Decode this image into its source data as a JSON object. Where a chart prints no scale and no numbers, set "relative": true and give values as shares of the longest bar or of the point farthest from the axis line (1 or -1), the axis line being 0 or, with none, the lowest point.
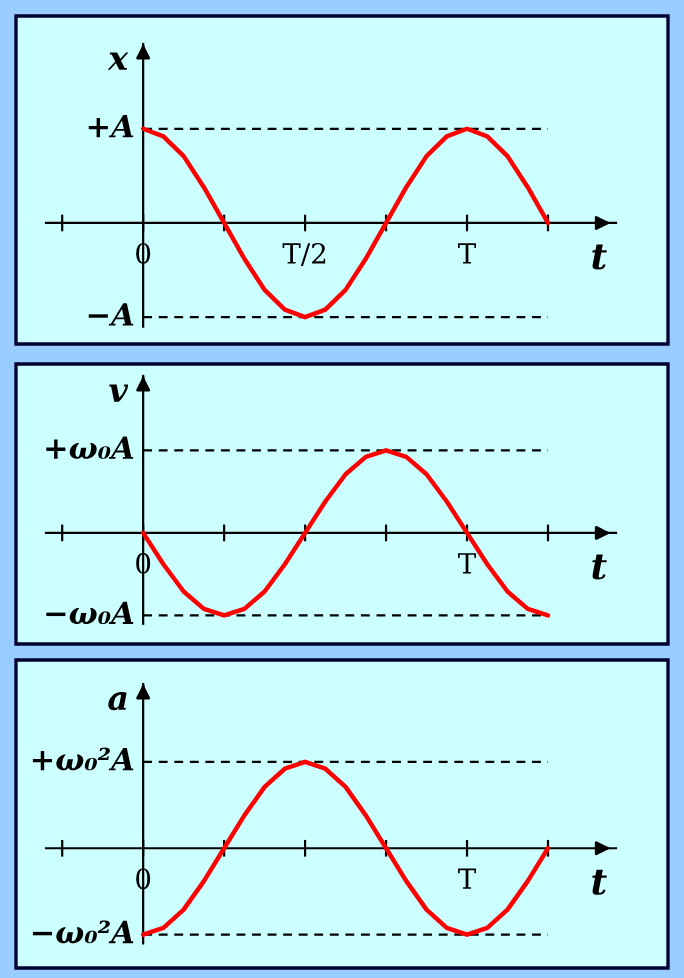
{
  "chart_data": [
    {
      "type": "line",
      "relative": true,
      "ylabel": "x",
      "xlabel": "t",
      "color": "#ff0000",
      "line_style": "solid",
      "grid": false,
      "categories": [
        "0",
        null,
        null,
        null,
        null,
        null,
        null,
        null,
        "T/2",
        null,
        null,
        null,
        null,
        null,
        null,
        null,
        "T",
        null,
        null,
        null,
        null
      ],
      "values": [
        1,
        0.92,
        0.71,
        0.38,
        0,
        -0.38,
        -0.71,
        -0.92,
        -1,
        -0.92,
        -0.71,
        -0.38,
        0,
        0.38,
        0.71,
        0.92,
        1,
        0.92,
        0.71,
        0.38,
        0
      ],
      "ref_lines": [
        {
          "axis": "y",
          "value": 1,
          "label": "+A",
          "line_style": "dashed",
          "color": "#000000"
        },
        {
          "axis": "y",
          "value": -1,
          "label": "−A",
          "line_style": "dashed",
          "color": "#000000"
        }
      ]
    },
    {
      "type": "line",
      "relative": true,
      "ylabel": "v",
      "xlabel": "t",
      "color": "#ff0000",
      "line_style": "solid",
      "grid": false,
      "categories": [
        "0",
        null,
        null,
        null,
        null,
        null,
        null,
        null,
        null,
        null,
        null,
        null,
        null,
        null,
        null,
        null,
        "T",
        null,
        null,
        null,
        null
      ],
      "values": [
        0,
        -0.38,
        -0.71,
        -0.92,
        -1,
        -0.92,
        -0.71,
        -0.38,
        0,
        0.38,
        0.71,
        0.92,
        1,
        0.92,
        0.71,
        0.38,
        0,
        -0.38,
        -0.71,
        -0.92,
        -1
      ],
      "ref_lines": [
        {
          "axis": "y",
          "value": 1,
          "label": "+ω₀A",
          "line_style": "dashed",
          "color": "#000000"
        },
        {
          "axis": "y",
          "value": -1,
          "label": "−ω₀A",
          "line_style": "dashed",
          "color": "#000000"
        }
      ]
    },
    {
      "type": "line",
      "relative": true,
      "ylabel": "a",
      "xlabel": "t",
      "color": "#ff0000",
      "line_style": "solid",
      "grid": false,
      "categories": [
        "0",
        null,
        null,
        null,
        null,
        null,
        null,
        null,
        null,
        null,
        null,
        null,
        null,
        null,
        null,
        null,
        "T",
        null,
        null,
        null,
        null
      ],
      "values": [
        -1,
        -0.92,
        -0.71,
        -0.38,
        0,
        0.38,
        0.71,
        0.92,
        1,
        0.92,
        0.71,
        0.38,
        0,
        -0.38,
        -0.71,
        -0.92,
        -1,
        -0.92,
        -0.71,
        -0.38,
        0
      ],
      "ref_lines": [
        {
          "axis": "y",
          "value": 1,
          "label": "+ω₀²A",
          "line_style": "dashed",
          "color": "#000000"
        },
        {
          "axis": "y",
          "value": -1,
          "label": "−ω₀²A",
          "line_style": "dashed",
          "color": "#000000"
        }
      ]
    }
  ]
}
